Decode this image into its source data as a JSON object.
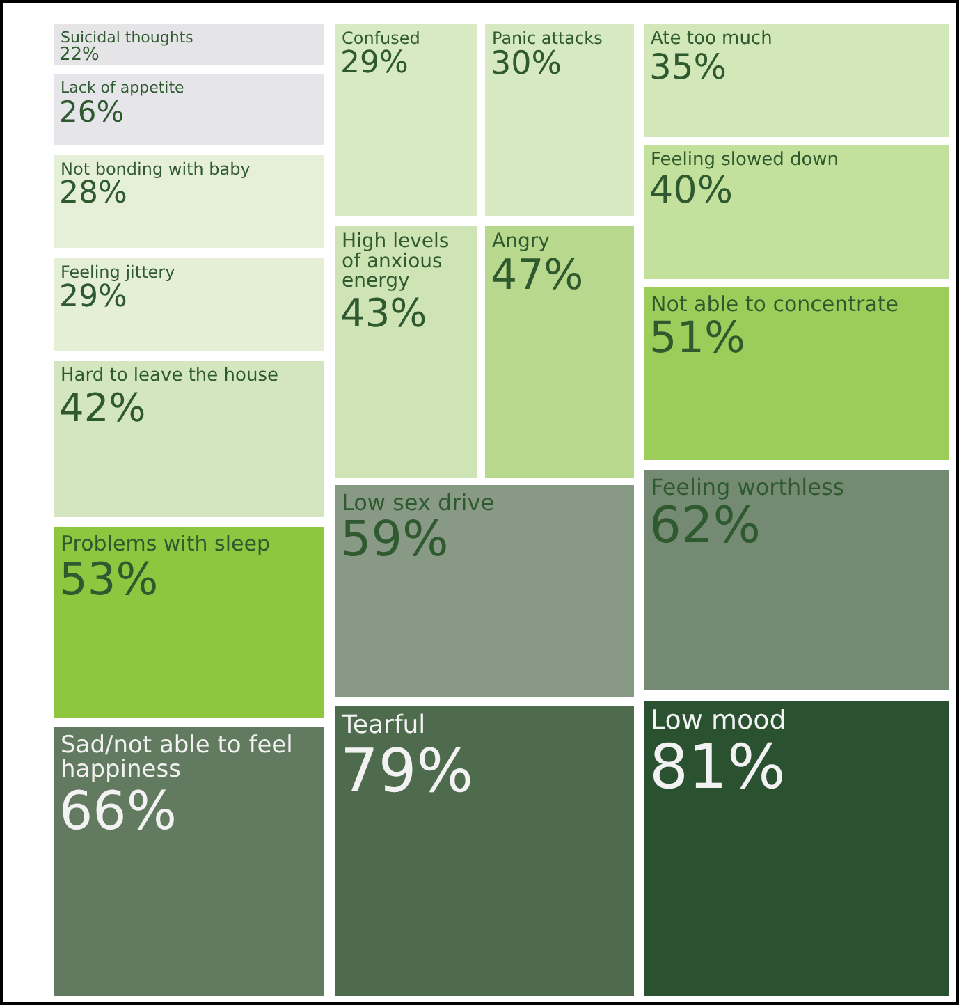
{
  "chart_data": {
    "type": "other",
    "categories": [
      "Suicidal thoughts",
      "Lack of appetite",
      "Not bonding with baby",
      "Feeling jittery",
      "Hard to leave the house",
      "Problems with sleep",
      "Sad/not able to feel happiness",
      "Confused",
      "Panic attacks",
      "High levels of anxious energy",
      "Angry",
      "Low sex drive",
      "Tearful",
      "Ate too much",
      "Feeling slowed down",
      "Not able to concentrate",
      "Feeling worthless",
      "Low mood"
    ],
    "values": [
      22,
      26,
      28,
      29,
      42,
      53,
      66,
      29,
      30,
      43,
      47,
      59,
      79,
      35,
      40,
      51,
      62,
      81
    ],
    "value_labels": [
      "22%",
      "26%",
      "28%",
      "29%",
      "42%",
      "53%",
      "66%",
      "29%",
      "30%",
      "43%",
      "47%",
      "59%",
      "79%",
      "35%",
      "40%",
      "51%",
      "62%",
      "81%"
    ],
    "colors": [
      "#e5e5e8",
      "#e6e6ea",
      "#e6f0d8",
      "#e4efd6",
      "#d4e6bf",
      "#8dc63f",
      "#627a5f",
      "#d8eac4",
      "#d6e9c1",
      "#cfe4b5",
      "#b8d98d",
      "#889a85",
      "#4e6b4e",
      "#d3e8b8",
      "#c3e09d",
      "#9ccd5a",
      "#748a72",
      "#2a5230"
    ]
  }
}
